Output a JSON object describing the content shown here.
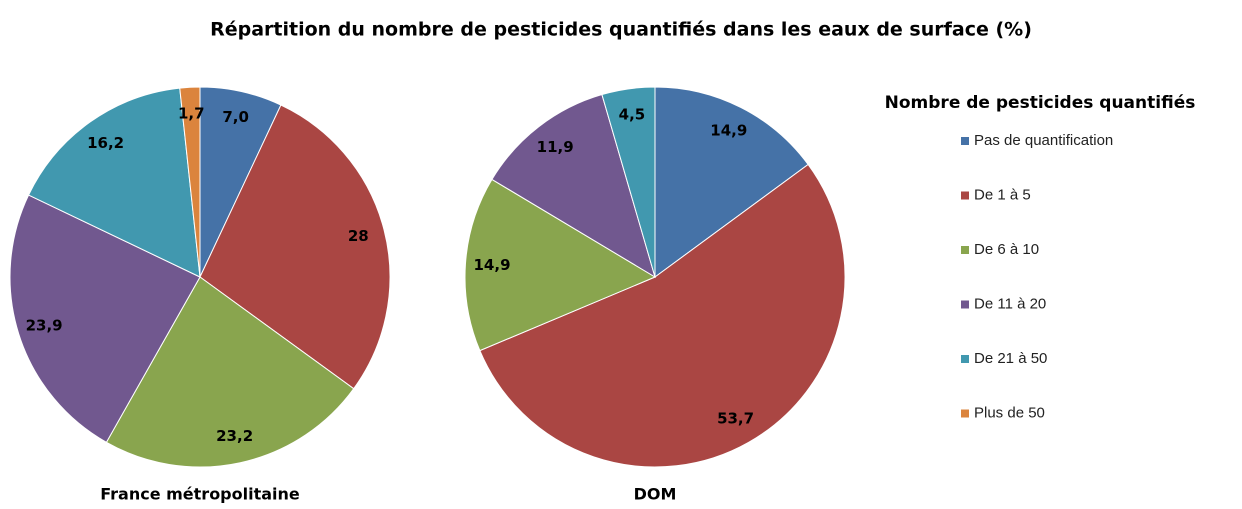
{
  "title": "Répartition du nombre de pesticides quantifiés dans les eaux de surface (%)",
  "legend_title": "Nombre de pesticides quantifiés",
  "chart_data": [
    {
      "type": "pie",
      "label": "France métropolitaine",
      "categories": [
        "Pas de quantification",
        "De 1 à 5",
        "De 6 à 10",
        "De 11 à 20",
        "De 21 à 50",
        "Plus de 50"
      ],
      "values": [
        7.0,
        28,
        23.2,
        23.9,
        16.2,
        1.7
      ],
      "value_labels": [
        "7,0",
        "28",
        "23,2",
        "23,9",
        "16,2",
        "1,7"
      ],
      "colors": [
        "#4572a7",
        "#aa4643",
        "#89a54e",
        "#71588f",
        "#4198af",
        "#db843d"
      ]
    },
    {
      "type": "pie",
      "label": "DOM",
      "categories": [
        "Pas de quantification",
        "De 1 à 5",
        "De 6 à 10",
        "De 11 à 20",
        "De 21 à 50"
      ],
      "values": [
        14.9,
        53.7,
        14.9,
        11.9,
        4.5
      ],
      "value_labels": [
        "14,9",
        "53,7",
        "14,9",
        "11,9",
        "4,5"
      ],
      "colors": [
        "#4572a7",
        "#aa4643",
        "#89a54e",
        "#71588f",
        "#4198af"
      ]
    }
  ]
}
